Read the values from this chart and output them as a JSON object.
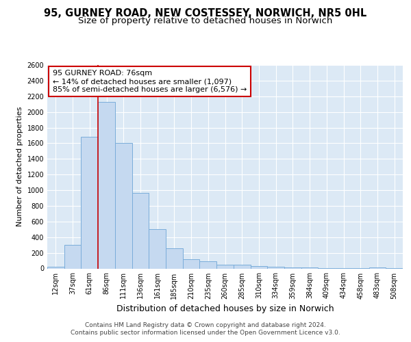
{
  "title_line1": "95, GURNEY ROAD, NEW COSTESSEY, NORWICH, NR5 0HL",
  "title_line2": "Size of property relative to detached houses in Norwich",
  "xlabel": "Distribution of detached houses by size in Norwich",
  "ylabel": "Number of detached properties",
  "categories": [
    "12sqm",
    "37sqm",
    "61sqm",
    "86sqm",
    "111sqm",
    "136sqm",
    "161sqm",
    "185sqm",
    "210sqm",
    "235sqm",
    "260sqm",
    "285sqm",
    "310sqm",
    "334sqm",
    "359sqm",
    "384sqm",
    "409sqm",
    "434sqm",
    "458sqm",
    "483sqm",
    "508sqm"
  ],
  "values": [
    25,
    300,
    1680,
    2130,
    1600,
    970,
    505,
    255,
    120,
    95,
    50,
    45,
    30,
    20,
    12,
    10,
    5,
    5,
    5,
    12,
    5
  ],
  "bar_color": "#c5d9f0",
  "bar_edge_color": "#7aadda",
  "vline_color": "#cc0000",
  "vline_pos": 2.5,
  "annotation_text": "95 GURNEY ROAD: 76sqm\n← 14% of detached houses are smaller (1,097)\n85% of semi-detached houses are larger (6,576) →",
  "annotation_box_facecolor": "#ffffff",
  "annotation_box_edgecolor": "#cc0000",
  "ylim": [
    0,
    2600
  ],
  "yticks": [
    0,
    200,
    400,
    600,
    800,
    1000,
    1200,
    1400,
    1600,
    1800,
    2000,
    2200,
    2400,
    2600
  ],
  "fig_facecolor": "#ffffff",
  "axes_facecolor": "#dce9f5",
  "grid_color": "#ffffff",
  "footer_line1": "Contains HM Land Registry data © Crown copyright and database right 2024.",
  "footer_line2": "Contains public sector information licensed under the Open Government Licence v3.0.",
  "title_fontsize": 10.5,
  "subtitle_fontsize": 9.5,
  "tick_fontsize": 7,
  "xlabel_fontsize": 9,
  "ylabel_fontsize": 8,
  "annotation_fontsize": 8,
  "footer_fontsize": 6.5
}
